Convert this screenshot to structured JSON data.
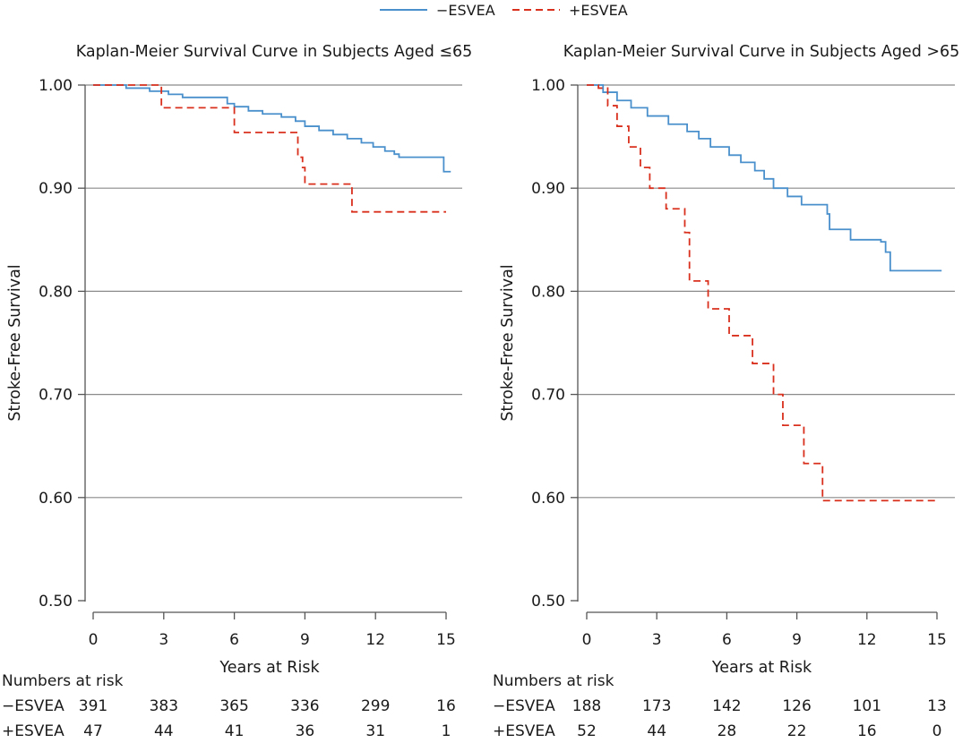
{
  "legend": [
    {
      "label": "−ESVEA",
      "color": "#4a90cc",
      "dash": "solid"
    },
    {
      "label": "+ESVEA",
      "color": "#d9301e",
      "dash": "dashed"
    }
  ],
  "chart_data": [
    {
      "type": "line",
      "step": true,
      "title": "Kaplan-Meier Survival Curve in Subjects Aged ≤65",
      "xlabel": "Years at Risk",
      "ylabel": "Stroke-Free Survival",
      "xlim": [
        0,
        15
      ],
      "ylim": [
        0.5,
        1.0
      ],
      "xticks": [
        "0",
        "3",
        "6",
        "9",
        "12",
        "15"
      ],
      "yticks": [
        "0.50",
        "0.60",
        "0.70",
        "0.80",
        "0.90",
        "1.00"
      ],
      "grid": true,
      "series": [
        {
          "name": "−ESVEA",
          "color": "#4a90cc",
          "dash": "solid",
          "x": [
            0,
            1.4,
            2.4,
            3.2,
            3.8,
            5.7,
            6.0,
            6.6,
            7.2,
            8.0,
            8.6,
            9.0,
            9.6,
            10.2,
            10.8,
            11.4,
            11.9,
            12.4,
            12.8,
            13.0,
            14.9,
            15.2
          ],
          "y": [
            1.0,
            0.997,
            0.994,
            0.991,
            0.988,
            0.982,
            0.979,
            0.975,
            0.972,
            0.969,
            0.965,
            0.96,
            0.956,
            0.952,
            0.948,
            0.944,
            0.94,
            0.936,
            0.933,
            0.93,
            0.916,
            0.916
          ]
        },
        {
          "name": "+ESVEA",
          "color": "#d9301e",
          "dash": "dashed",
          "x": [
            0,
            2.9,
            6.0,
            8.7,
            8.9,
            9.0,
            11.0,
            15.0
          ],
          "y": [
            1.0,
            0.978,
            0.954,
            0.93,
            0.92,
            0.904,
            0.877,
            0.877
          ]
        }
      ],
      "risk_table": {
        "heading": "Numbers at risk",
        "rows": [
          {
            "label": "−ESVEA",
            "values": [
              "391",
              "383",
              "365",
              "336",
              "299",
              "16"
            ]
          },
          {
            "label": "+ESVEA",
            "values": [
              "47",
              "44",
              "41",
              "36",
              "31",
              "1"
            ]
          }
        ]
      }
    },
    {
      "type": "line",
      "step": true,
      "title": "Kaplan-Meier Survival Curve in Subjects Aged >65",
      "xlabel": "Years at Risk",
      "ylabel": "Stroke-Free Survival",
      "xlim": [
        0,
        15
      ],
      "ylim": [
        0.5,
        1.0
      ],
      "xticks": [
        "0",
        "3",
        "6",
        "9",
        "12",
        "15"
      ],
      "yticks": [
        "0.50",
        "0.60",
        "0.70",
        "0.80",
        "0.90",
        "1.00"
      ],
      "grid": true,
      "series": [
        {
          "name": "−ESVEA",
          "color": "#4a90cc",
          "dash": "solid",
          "x": [
            0,
            0.7,
            1.3,
            1.9,
            2.6,
            3.5,
            4.3,
            4.8,
            5.3,
            6.1,
            6.6,
            7.2,
            7.6,
            8.0,
            8.6,
            9.2,
            10.3,
            10.4,
            11.3,
            12.6,
            12.8,
            13.0,
            15.2
          ],
          "y": [
            1.0,
            0.993,
            0.985,
            0.978,
            0.97,
            0.962,
            0.955,
            0.948,
            0.94,
            0.932,
            0.925,
            0.917,
            0.909,
            0.9,
            0.892,
            0.884,
            0.875,
            0.86,
            0.85,
            0.848,
            0.838,
            0.82,
            0.82
          ]
        },
        {
          "name": "+ESVEA",
          "color": "#d9301e",
          "dash": "dashed",
          "x": [
            0,
            0.5,
            0.9,
            1.3,
            1.8,
            2.3,
            2.7,
            3.4,
            4.2,
            4.4,
            5.2,
            6.1,
            7.1,
            8.0,
            8.4,
            9.3,
            10.1,
            15.0
          ],
          "y": [
            1.0,
            0.997,
            0.98,
            0.96,
            0.94,
            0.92,
            0.9,
            0.88,
            0.857,
            0.81,
            0.783,
            0.757,
            0.73,
            0.7,
            0.67,
            0.633,
            0.597,
            0.597
          ]
        }
      ],
      "risk_table": {
        "heading": "Numbers at risk",
        "rows": [
          {
            "label": "−ESVEA",
            "values": [
              "188",
              "173",
              "142",
              "126",
              "101",
              "13"
            ]
          },
          {
            "label": "+ESVEA",
            "values": [
              "52",
              "44",
              "28",
              "22",
              "16",
              "0"
            ]
          }
        ]
      }
    }
  ]
}
